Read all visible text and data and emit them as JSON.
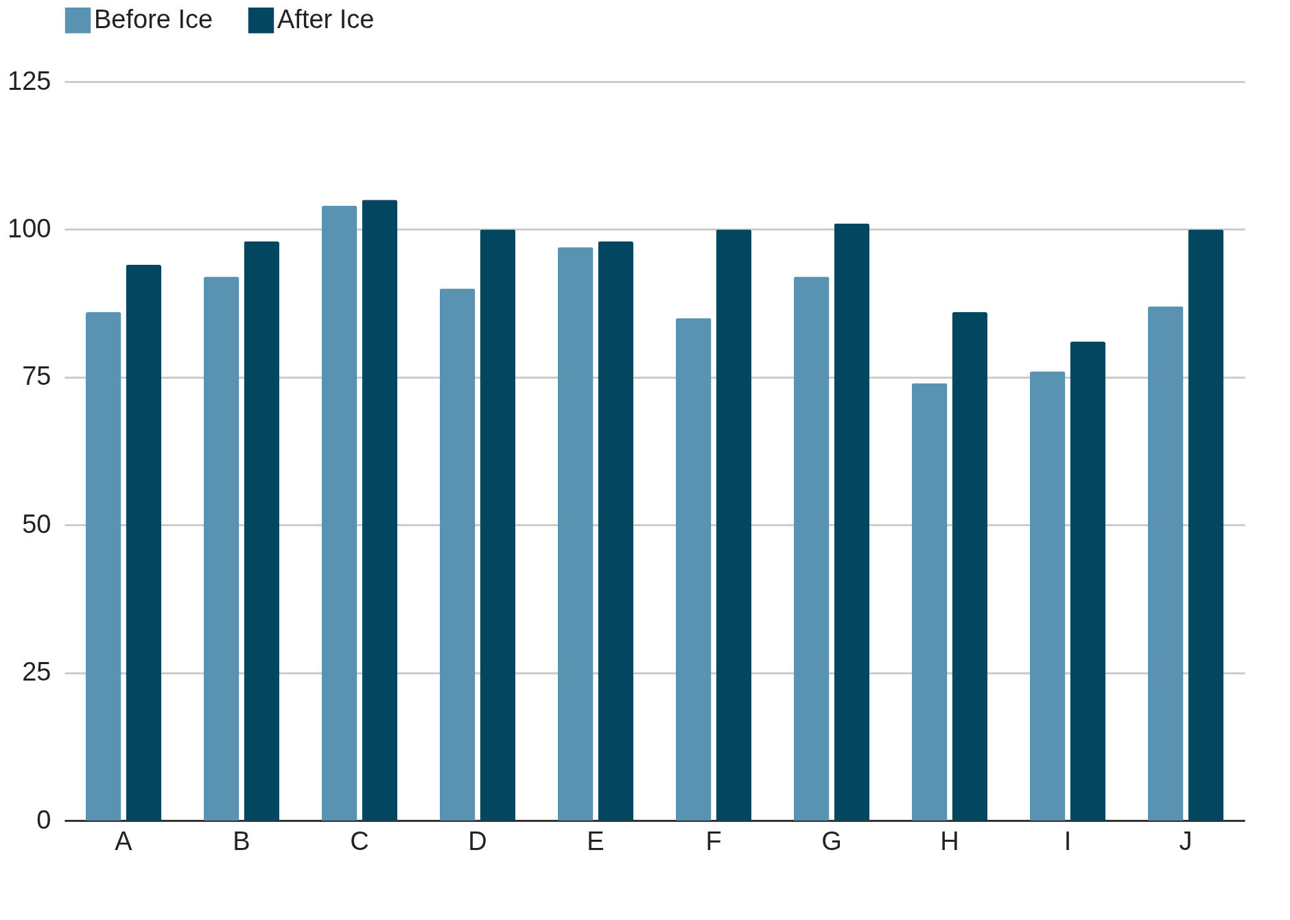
{
  "chart_data": {
    "type": "bar",
    "categories": [
      "A",
      "B",
      "C",
      "D",
      "E",
      "F",
      "G",
      "H",
      "I",
      "J"
    ],
    "series": [
      {
        "name": "Before Ice",
        "color": "#5a93b1",
        "values": [
          86,
          92,
          104,
          90,
          97,
          85,
          92,
          74,
          76,
          87
        ]
      },
      {
        "name": "After Ice",
        "color": "#03465f",
        "values": [
          94,
          98,
          105,
          100,
          98,
          100,
          101,
          86,
          81,
          100
        ]
      }
    ],
    "ylim": [
      0,
      125
    ],
    "yticks": [
      0,
      25,
      50,
      75,
      100,
      125
    ],
    "grid": "y",
    "legend": "top"
  }
}
